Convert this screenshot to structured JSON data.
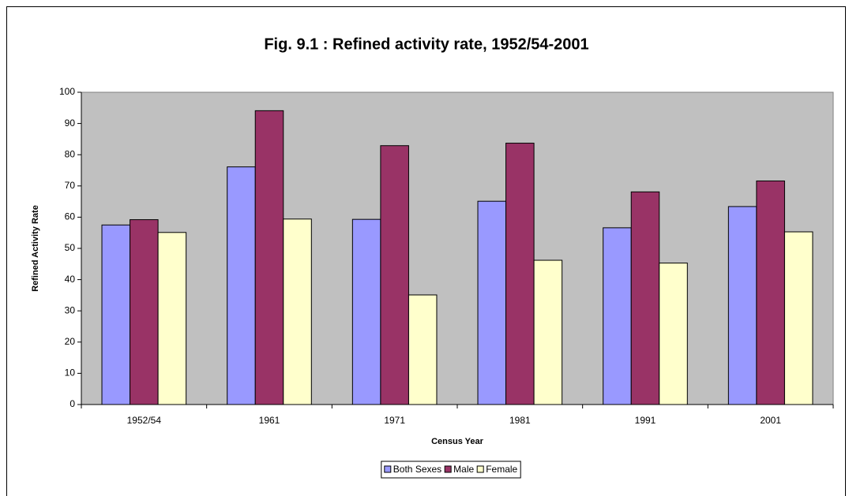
{
  "chart_data": {
    "type": "bar",
    "title": "Fig. 9.1 : Refined activity rate, 1952/54-2001",
    "x_label": "Census Year",
    "y_label": "Refined Activity Rate",
    "categories": [
      "1952/54",
      "1961",
      "1971",
      "1981",
      "1991",
      "2001"
    ],
    "series": [
      {
        "name": "Both Sexes",
        "color": "#9999ff",
        "values": [
          57.5,
          76.1,
          59.3,
          65.1,
          56.6,
          63.4
        ]
      },
      {
        "name": "Male",
        "color": "#993366",
        "values": [
          59.2,
          94.1,
          82.9,
          83.7,
          68.1,
          71.6
        ]
      },
      {
        "name": "Female",
        "color": "#ffffcc",
        "values": [
          55.1,
          59.4,
          35.1,
          46.2,
          45.3,
          55.3
        ]
      }
    ],
    "ylim": [
      0,
      100
    ],
    "yticks": [
      0,
      10,
      20,
      30,
      40,
      50,
      60,
      70,
      80,
      90,
      100
    ],
    "grid": false,
    "plot_background": "#c0c0c0",
    "legend_position": "bottom"
  }
}
